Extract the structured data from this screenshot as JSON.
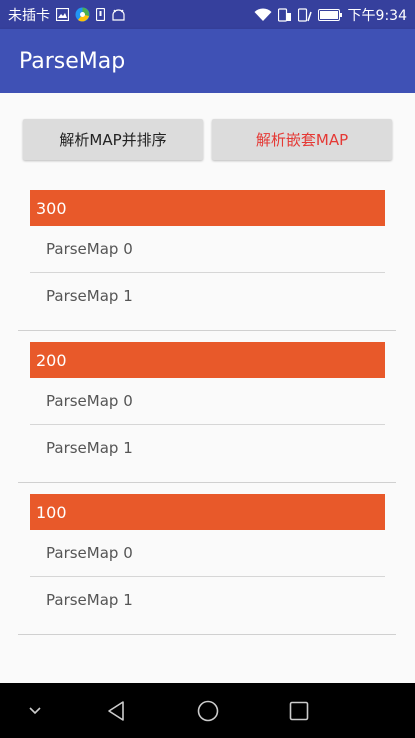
{
  "status_bar": {
    "carrier": "未插卡",
    "time": "下午9:34",
    "bg_color": "#36409d",
    "icons_left": [
      "sim-icon",
      "image-icon",
      "browser-icon",
      "sdcard-icon",
      "android-icon"
    ],
    "icons_right": [
      "wifi-icon",
      "data-icon",
      "signal-icon",
      "battery-icon"
    ]
  },
  "app_bar": {
    "title": "ParseMap",
    "bg_color": "#3f51b5"
  },
  "buttons": {
    "parse_sort_label": "解析MAP并排序",
    "parse_nested_label": "解析嵌套MAP",
    "nested_text_color": "#e53935"
  },
  "groups": [
    {
      "header": "300",
      "items": [
        "ParseMap 0",
        "ParseMap 1"
      ]
    },
    {
      "header": "200",
      "items": [
        "ParseMap 0",
        "ParseMap 1"
      ]
    },
    {
      "header": "100",
      "items": [
        "ParseMap 0",
        "ParseMap 1"
      ]
    }
  ],
  "header_color": "#e8592a",
  "nav_bar": {
    "buttons": [
      "chevron-down-icon",
      "back-icon",
      "home-icon",
      "recents-icon"
    ]
  }
}
